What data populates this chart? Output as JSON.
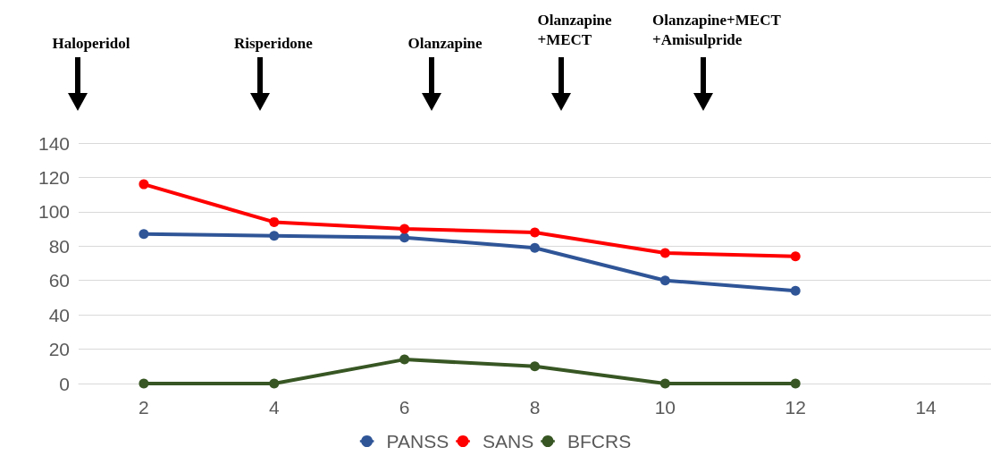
{
  "chart_data": {
    "type": "line",
    "x": [
      2,
      4,
      6,
      8,
      10,
      12
    ],
    "series": [
      {
        "name": "PANSS",
        "color": "#2f5597",
        "values": [
          87,
          86,
          85,
          79,
          60,
          54
        ]
      },
      {
        "name": "SANS",
        "color": "#ff0000",
        "values": [
          116,
          94,
          90,
          88,
          76,
          74
        ]
      },
      {
        "name": "BFCRS",
        "color": "#375623",
        "values": [
          0,
          0,
          14,
          10,
          0,
          0
        ]
      }
    ],
    "xlim": [
      1,
      15
    ],
    "xticks": [
      2,
      4,
      6,
      8,
      10,
      12,
      14
    ],
    "ylim": [
      0,
      140
    ],
    "yticks": [
      0,
      20,
      40,
      60,
      80,
      100,
      120,
      140
    ],
    "grid": "y",
    "legend": "bottom",
    "marker": "circle",
    "line_style": "solid",
    "annotations": [
      "Haloperidol",
      "Risperidone",
      "Olanzapine",
      "Olanzapine\n+MECT",
      "Olanzapine+MECT\n+Amisulpride"
    ]
  }
}
